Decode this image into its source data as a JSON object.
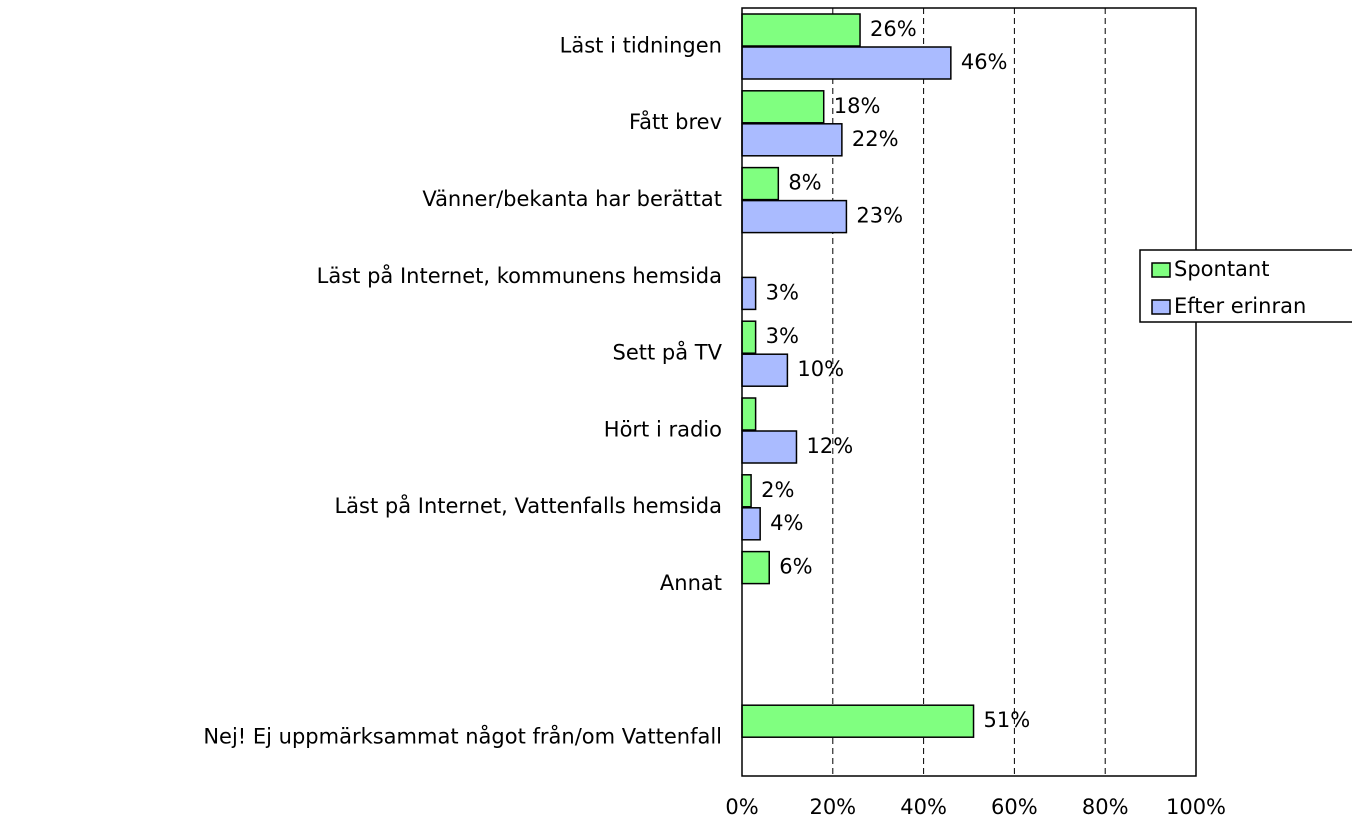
{
  "chart_data": {
    "type": "hbar",
    "categories": [
      "Läst i tidningen",
      "Fått brev",
      "Vänner/bekanta har berättat",
      "Läst på Internet, kommunens hemsida",
      "Sett på TV",
      "Hört i radio",
      "Läst på Internet, Vattenfalls hemsida",
      "Annat",
      null,
      "Nej! Ej uppmärksammat något från/om Vattenfall"
    ],
    "series": [
      {
        "name": "Spontant",
        "color": "#80ff80",
        "values": [
          26,
          18,
          8,
          null,
          3,
          3,
          2,
          6,
          null,
          51
        ],
        "value_labels": [
          "26%",
          "18%",
          "8%",
          null,
          "3%",
          null,
          "2%",
          "6%",
          null,
          "51%"
        ]
      },
      {
        "name": "Efter erinran",
        "color": "#aabbff",
        "values": [
          46,
          22,
          23,
          3,
          10,
          12,
          4,
          null,
          null,
          null
        ],
        "value_labels": [
          "46%",
          "22%",
          "23%",
          "3%",
          "10%",
          "12%",
          "4%",
          null,
          null,
          null
        ]
      }
    ],
    "xlim": [
      0,
      100
    ],
    "xticks": [
      {
        "value": 0,
        "label": "0%"
      },
      {
        "value": 20,
        "label": "20%"
      },
      {
        "value": 40,
        "label": "40%"
      },
      {
        "value": 60,
        "label": "60%"
      },
      {
        "value": 80,
        "label": "80%"
      },
      {
        "value": 100,
        "label": "100%"
      }
    ],
    "grid": true,
    "legend": "right"
  }
}
